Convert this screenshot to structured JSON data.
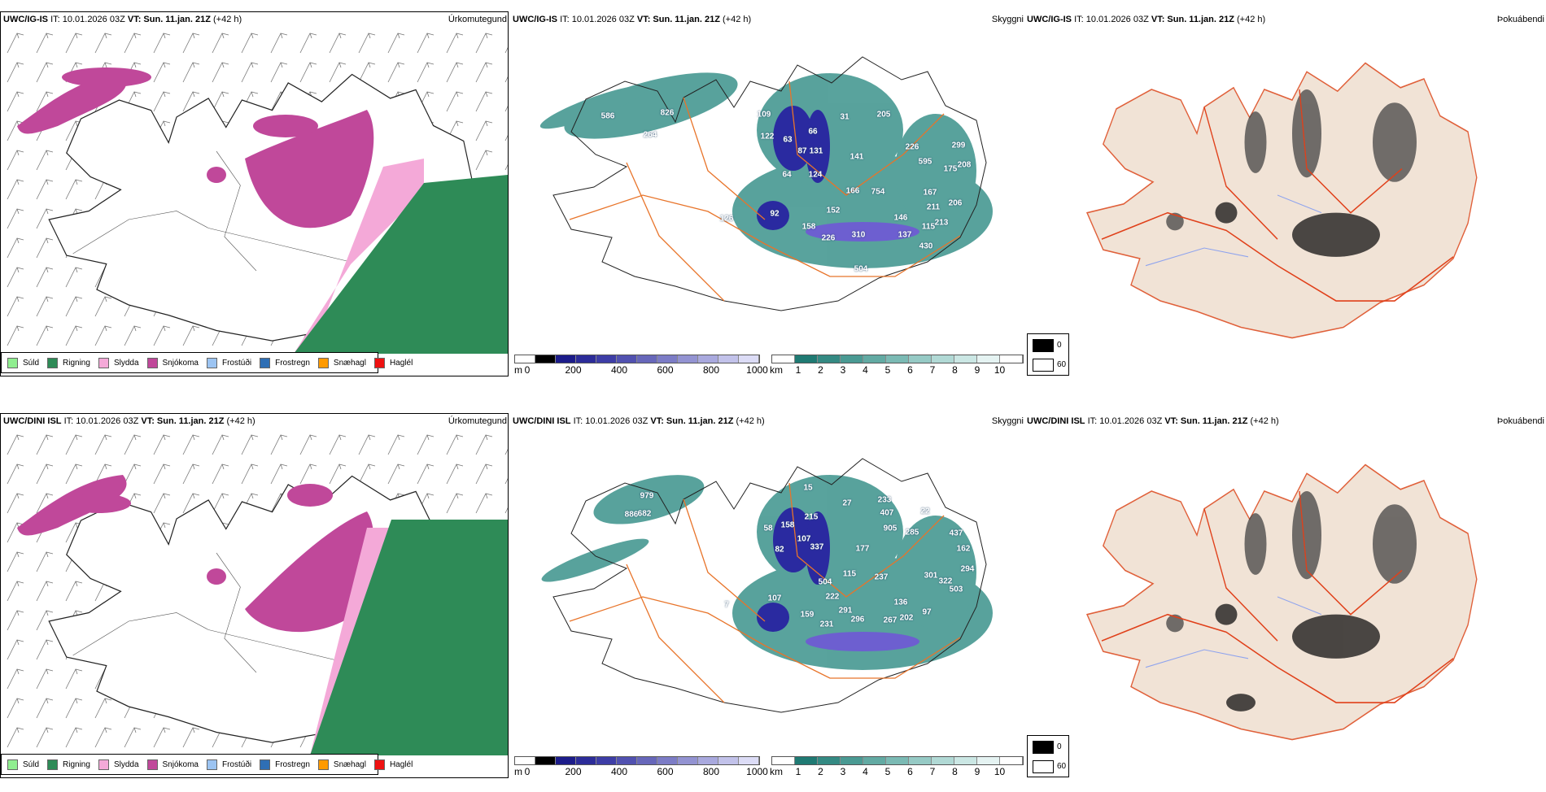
{
  "panel_titles": {
    "precip_type": "Úrkomutegund",
    "visibility": "Skyggni",
    "fog": "Þokuábendi"
  },
  "rows": [
    {
      "model": "UWC/IG-IS",
      "it": "IT: 10.01.2026 03Z",
      "vt": "VT: Sun. 11.jan. 21Z",
      "lead": "(+42 h)",
      "visibility_labels": [
        "586",
        "826",
        "264",
        "109",
        "122",
        "63",
        "66",
        "87",
        "131",
        "141",
        "64",
        "124",
        "31",
        "205",
        "226",
        "595",
        "299",
        "175",
        "208",
        "166",
        "754",
        "167",
        "211",
        "206",
        "92",
        "126",
        "152",
        "146",
        "158",
        "115",
        "213",
        "226",
        "310",
        "137",
        "430",
        "504"
      ]
    },
    {
      "model": "UWC/DINI ISL",
      "it": "IT: 10.01.2026 03Z",
      "vt": "VT: Sun. 11.jan. 21Z",
      "lead": "(+42 h)",
      "visibility_labels": [
        "979",
        "886",
        "682",
        "15",
        "27",
        "233",
        "407",
        "905",
        "285",
        "22",
        "215",
        "158",
        "58",
        "107",
        "337",
        "82",
        "177",
        "437",
        "162",
        "294",
        "115",
        "237",
        "301",
        "504",
        "322",
        "503",
        "222",
        "107",
        "7",
        "136",
        "159",
        "291",
        "296",
        "267",
        "202",
        "97",
        "231"
      ]
    }
  ],
  "precip_legend": [
    {
      "label": "Súld",
      "color": "#90ee90"
    },
    {
      "label": "Rigning",
      "color": "#2e8b57"
    },
    {
      "label": "Slydda",
      "color": "#f4a9d8"
    },
    {
      "label": "Snjókoma",
      "color": "#c0489a"
    },
    {
      "label": "Frostúði",
      "color": "#9cc4f2"
    },
    {
      "label": "Frostregn",
      "color": "#2f6fb5"
    },
    {
      "label": "Snæhagl",
      "color": "#ff9a00"
    },
    {
      "label": "Haglél",
      "color": "#ee1111"
    }
  ],
  "ceiling_bar": {
    "unit": "m",
    "ticks": [
      "0",
      "200",
      "400",
      "600",
      "800",
      "1000"
    ],
    "colors": [
      "#ffffff",
      "#000000",
      "#1c1c8a",
      "#2c2c99",
      "#3d3da6",
      "#5151b0",
      "#6767ba",
      "#7c7cc6",
      "#9393d2",
      "#a9a9de",
      "#c2c2ea",
      "#dcdcf6"
    ]
  },
  "visibility_bar": {
    "unit": "km",
    "ticks": [
      "1",
      "2",
      "3",
      "4",
      "5",
      "6",
      "7",
      "8",
      "9",
      "10"
    ],
    "colors": [
      "#ffffff",
      "#1f7a73",
      "#348a83",
      "#4a9a93",
      "#62aaa3",
      "#7bbab4",
      "#96cac5",
      "#b1d9d5",
      "#cbe7e4",
      "#e5f3f2",
      "#ffffff"
    ]
  },
  "fog_legend": [
    {
      "label": "0",
      "color": "#000000"
    },
    {
      "label": "60",
      "color": "#ffffff"
    }
  ]
}
